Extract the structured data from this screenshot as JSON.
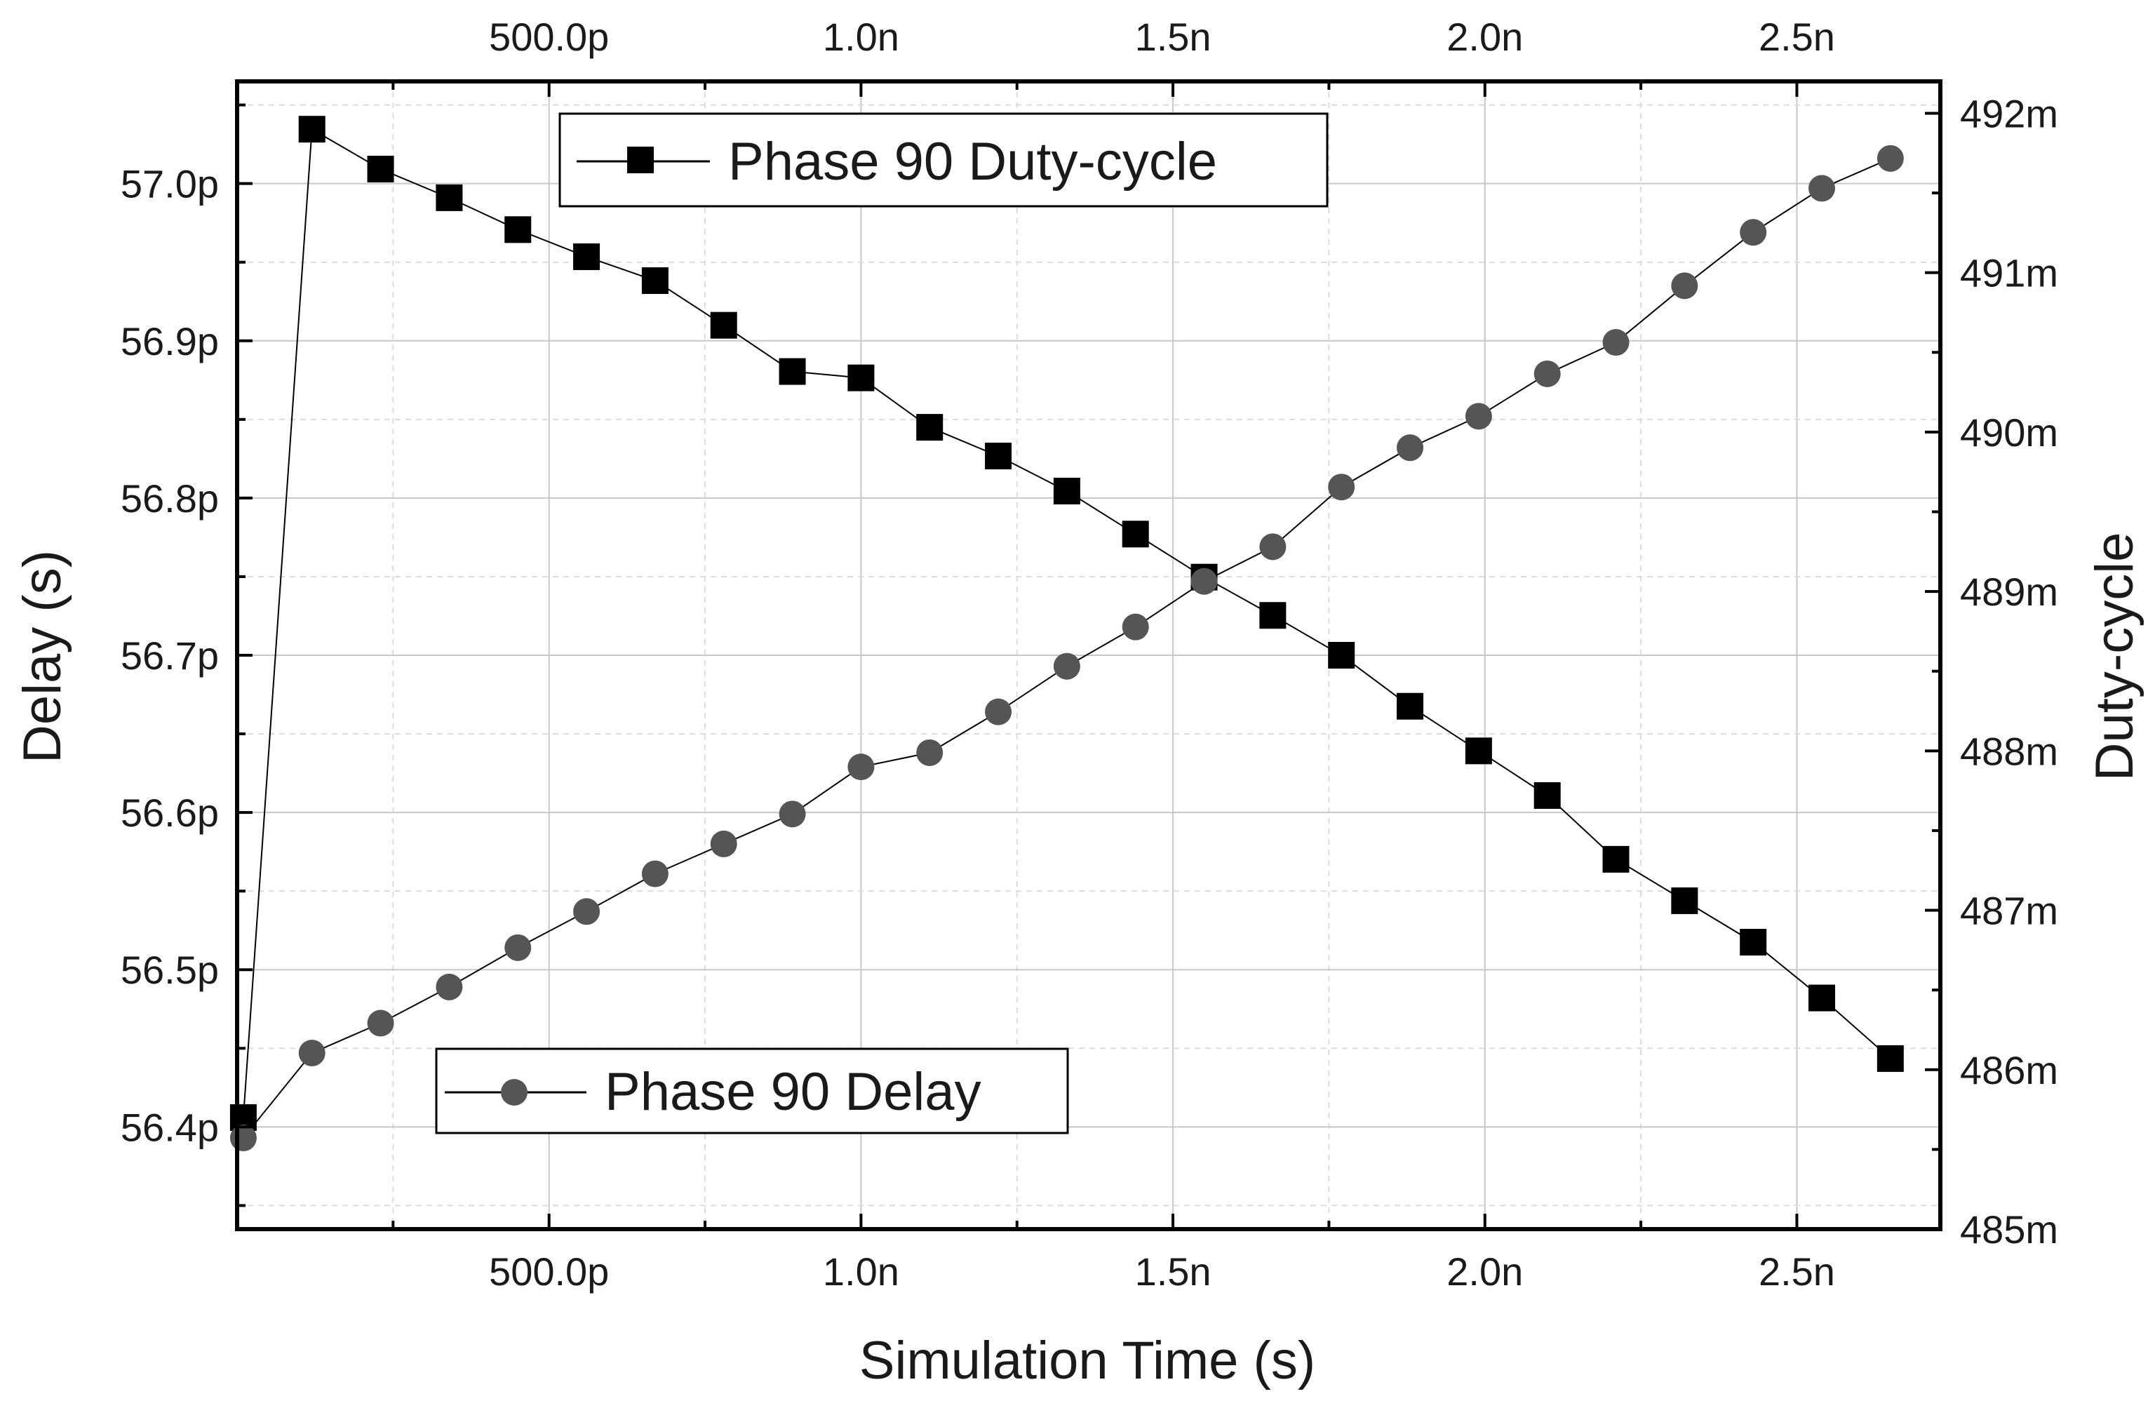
{
  "chart_data": {
    "type": "scatter",
    "xlabel": "Simulation Time (s)",
    "ylabel_left": "Delay (s)",
    "ylabel_right": "Duty-cycle",
    "x_ticks": [
      "500.0p",
      "1.0n",
      "1.5n",
      "2.0n",
      "2.5n"
    ],
    "x_tick_values": [
      5e-10,
      1e-09,
      1.5e-09,
      2e-09,
      2.5e-09
    ],
    "y_left_ticks": [
      "56.4p",
      "56.5p",
      "56.6p",
      "56.7p",
      "56.8p",
      "56.9p",
      "57.0p"
    ],
    "y_left_tick_values": [
      56.4,
      56.5,
      56.6,
      56.7,
      56.8,
      56.9,
      57.0
    ],
    "y_left_unit": "ps",
    "y_right_ticks": [
      "485m",
      "486m",
      "487m",
      "488m",
      "489m",
      "490m",
      "491m",
      "492m"
    ],
    "y_right_tick_values": [
      485,
      486,
      487,
      488,
      489,
      490,
      491,
      492
    ],
    "y_right_unit": "m",
    "xlim": [
      0,
      2.73e-09
    ],
    "ylim_left": [
      56.335,
      57.065
    ],
    "ylim_right": [
      485,
      492.2
    ],
    "grid": true,
    "series": [
      {
        "name": "Phase 90 Duty-cycle",
        "axis": "right",
        "marker": "square",
        "color": "#000000",
        "x": [
          1e-11,
          1.2e-10,
          2.3e-10,
          3.4e-10,
          4.5e-10,
          5.6e-10,
          6.7e-10,
          7.8e-10,
          8.9e-10,
          1e-09,
          1.11e-09,
          1.22e-09,
          1.33e-09,
          1.44e-09,
          1.55e-09,
          1.66e-09,
          1.77e-09,
          1.88e-09,
          1.99e-09,
          2.1e-09,
          2.21e-09,
          2.32e-09,
          2.43e-09,
          2.54e-09,
          2.65e-09
        ],
        "values": [
          485.7,
          491.9,
          491.65,
          491.47,
          491.27,
          491.1,
          490.95,
          490.67,
          490.38,
          490.34,
          490.03,
          489.85,
          489.63,
          489.36,
          489.09,
          488.85,
          488.6,
          488.28,
          488.0,
          487.72,
          487.32,
          487.06,
          486.8,
          486.45,
          486.07
        ]
      },
      {
        "name": "Phase 90 Delay",
        "axis": "left",
        "marker": "circle",
        "color": "#555555",
        "x": [
          1e-11,
          1.2e-10,
          2.3e-10,
          3.4e-10,
          4.5e-10,
          5.6e-10,
          6.7e-10,
          7.8e-10,
          8.9e-10,
          1e-09,
          1.11e-09,
          1.22e-09,
          1.33e-09,
          1.44e-09,
          1.55e-09,
          1.66e-09,
          1.77e-09,
          1.88e-09,
          1.99e-09,
          2.1e-09,
          2.21e-09,
          2.32e-09,
          2.43e-09,
          2.54e-09,
          2.65e-09
        ],
        "values": [
          56.393,
          56.447,
          56.466,
          56.489,
          56.514,
          56.537,
          56.561,
          56.58,
          56.599,
          56.629,
          56.638,
          56.664,
          56.693,
          56.718,
          56.747,
          56.769,
          56.807,
          56.832,
          56.852,
          56.879,
          56.899,
          56.935,
          56.969,
          56.997,
          57.016
        ]
      }
    ],
    "legend": [
      {
        "label": "Phase 90 Duty-cycle",
        "placement": "top-left"
      },
      {
        "label": "Phase 90 Delay",
        "placement": "bottom-left"
      }
    ]
  }
}
